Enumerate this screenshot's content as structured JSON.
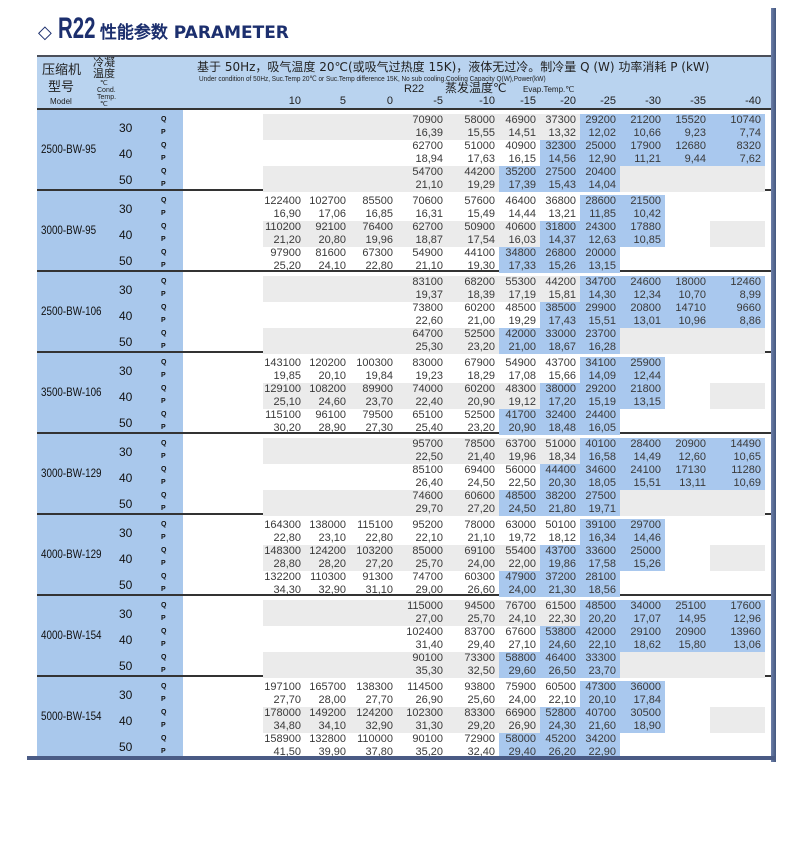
{
  "title": {
    "icon": "diamond-outline-icon",
    "brand": "R22",
    "text": "性能参数 PARAMETER"
  },
  "header": {
    "model_cn_1": "压缩机",
    "model_cn_2": "型号",
    "model_en": "Model",
    "cond_cn_1": "冷凝",
    "cond_cn_2": "温度",
    "cond_unit": "℃",
    "cond_en_1": "Cond.",
    "cond_en_2": "Temp.",
    "cond_unit_2": "℃",
    "condition_cn": "基于 50Hz，吸气温度 20℃(或吸气过热度 15K)，液体无过冷。制冷量 Q (W)  功率消耗 P (kW)",
    "condition_en": "Under condition of 50Hz, Suc.Temp 20℃ or Suc.Temp difference 15K, No sub cooling.Cooling Capacity Q(W),Power(kW)",
    "refrigerant": "R22",
    "evap_cn": "蒸发温度℃",
    "evap_en": "Evap.Temp.℃"
  },
  "evap_temps": [
    "10",
    "5",
    "0",
    "-5",
    "-10",
    "-15",
    "-20",
    "-25",
    "-30",
    "-35",
    "-40"
  ],
  "colors": {
    "header_bg": "#b9d3ef",
    "left_col_bg": "#a9c8ec",
    "highlight": "#a9c8ee",
    "shade": "#ebebeb",
    "title": "#1c2f6e"
  },
  "models": [
    {
      "name": "2500-BW-95",
      "conditions": [
        {
          "cond_temp": "30",
          "Q": [
            "",
            "",
            "",
            "70900",
            "58000",
            "46900",
            "37300",
            "29200",
            "21200",
            "15520",
            "10740"
          ],
          "P": [
            "",
            "",
            "",
            "16,39",
            "15,55",
            "14,51",
            "13,32",
            "12,02",
            "10,66",
            "9,23",
            "7,74"
          ]
        },
        {
          "cond_temp": "40",
          "Q": [
            "",
            "",
            "",
            "62700",
            "51000",
            "40900",
            "32300",
            "25000",
            "17900",
            "12680",
            "8320"
          ],
          "P": [
            "",
            "",
            "",
            "18,94",
            "17,63",
            "16,15",
            "14,56",
            "12,90",
            "11,21",
            "9,44",
            "7,62"
          ]
        },
        {
          "cond_temp": "50",
          "Q": [
            "",
            "",
            "",
            "54700",
            "44200",
            "35200",
            "27500",
            "20400",
            "",
            "",
            ""
          ],
          "P": [
            "",
            "",
            "",
            "21,10",
            "19,29",
            "17,39",
            "15,43",
            "14,04",
            "",
            "",
            ""
          ]
        }
      ]
    },
    {
      "name": "3000-BW-95",
      "conditions": [
        {
          "cond_temp": "30",
          "Q": [
            "122400",
            "102700",
            "85500",
            "70600",
            "57600",
            "46400",
            "36800",
            "28600",
            "21500",
            "",
            ""
          ],
          "P": [
            "16,90",
            "17,06",
            "16,85",
            "16,31",
            "15,49",
            "14,44",
            "13,21",
            "11,85",
            "10,42",
            "",
            ""
          ]
        },
        {
          "cond_temp": "40",
          "Q": [
            "110200",
            "92100",
            "76400",
            "62700",
            "50900",
            "40600",
            "31800",
            "24300",
            "17880",
            "",
            ""
          ],
          "P": [
            "21,20",
            "20,80",
            "19,96",
            "18,87",
            "17,54",
            "16,03",
            "14,37",
            "12,63",
            "10,85",
            "",
            ""
          ]
        },
        {
          "cond_temp": "50",
          "Q": [
            "97900",
            "81600",
            "67300",
            "54900",
            "44100",
            "34800",
            "26800",
            "20000",
            "",
            "",
            ""
          ],
          "P": [
            "25,20",
            "24,10",
            "22,80",
            "21,10",
            "19,30",
            "17,33",
            "15,26",
            "13,15",
            "",
            "",
            ""
          ]
        }
      ]
    },
    {
      "name": "2500-BW-106",
      "conditions": [
        {
          "cond_temp": "30",
          "Q": [
            "",
            "",
            "",
            "83100",
            "68200",
            "55300",
            "44200",
            "34700",
            "24600",
            "18000",
            "12460"
          ],
          "P": [
            "",
            "",
            "",
            "19,37",
            "18,39",
            "17,19",
            "15,81",
            "14,30",
            "12,34",
            "10,70",
            "8,99"
          ]
        },
        {
          "cond_temp": "40",
          "Q": [
            "",
            "",
            "",
            "73800",
            "60200",
            "48500",
            "38500",
            "29900",
            "20800",
            "14710",
            "9660"
          ],
          "P": [
            "",
            "",
            "",
            "22,60",
            "21,00",
            "19,29",
            "17,43",
            "15,51",
            "13,01",
            "10,96",
            "8,86"
          ]
        },
        {
          "cond_temp": "50",
          "Q": [
            "",
            "",
            "",
            "64700",
            "52500",
            "42000",
            "33000",
            "23700",
            "",
            "",
            ""
          ],
          "P": [
            "",
            "",
            "",
            "25,30",
            "23,20",
            "21,00",
            "18,67",
            "16,28",
            "",
            "",
            ""
          ]
        }
      ]
    },
    {
      "name": "3500-BW-106",
      "conditions": [
        {
          "cond_temp": "30",
          "Q": [
            "143100",
            "120200",
            "100300",
            "83000",
            "67900",
            "54900",
            "43700",
            "34100",
            "25900",
            "",
            ""
          ],
          "P": [
            "19,85",
            "20,10",
            "19,84",
            "19,23",
            "18,29",
            "17,08",
            "15,66",
            "14,09",
            "12,44",
            "",
            ""
          ]
        },
        {
          "cond_temp": "40",
          "Q": [
            "129100",
            "108200",
            "89900",
            "74000",
            "60200",
            "48300",
            "38000",
            "29200",
            "21800",
            "",
            ""
          ],
          "P": [
            "25,10",
            "24,60",
            "23,70",
            "22,40",
            "20,90",
            "19,12",
            "17,20",
            "15,19",
            "13,15",
            "",
            ""
          ]
        },
        {
          "cond_temp": "50",
          "Q": [
            "115100",
            "96100",
            "79500",
            "65100",
            "52500",
            "41700",
            "32400",
            "24400",
            "",
            "",
            ""
          ],
          "P": [
            "30,20",
            "28,90",
            "27,30",
            "25,40",
            "23,20",
            "20,90",
            "18,48",
            "16,05",
            "",
            "",
            ""
          ]
        }
      ]
    },
    {
      "name": "3000-BW-129",
      "conditions": [
        {
          "cond_temp": "30",
          "Q": [
            "",
            "",
            "",
            "95700",
            "78500",
            "63700",
            "51000",
            "40100",
            "28400",
            "20900",
            "14490"
          ],
          "P": [
            "",
            "",
            "",
            "22,50",
            "21,40",
            "19,96",
            "18,34",
            "16,58",
            "14,49",
            "12,60",
            "10,65"
          ]
        },
        {
          "cond_temp": "40",
          "Q": [
            "",
            "",
            "",
            "85100",
            "69400",
            "56000",
            "44400",
            "34600",
            "24100",
            "17130",
            "11280"
          ],
          "P": [
            "",
            "",
            "",
            "26,40",
            "24,50",
            "22,50",
            "20,30",
            "18,05",
            "15,51",
            "13,11",
            "10,69"
          ]
        },
        {
          "cond_temp": "50",
          "Q": [
            "",
            "",
            "",
            "74600",
            "60600",
            "48500",
            "38200",
            "27500",
            "",
            "",
            ""
          ],
          "P": [
            "",
            "",
            "",
            "29,70",
            "27,20",
            "24,50",
            "21,80",
            "19,71",
            "",
            "",
            ""
          ]
        }
      ]
    },
    {
      "name": "4000-BW-129",
      "conditions": [
        {
          "cond_temp": "30",
          "Q": [
            "164300",
            "138000",
            "115100",
            "95200",
            "78000",
            "63000",
            "50100",
            "39100",
            "29700",
            "",
            ""
          ],
          "P": [
            "22,80",
            "23,10",
            "22,80",
            "22,10",
            "21,10",
            "19,72",
            "18,12",
            "16,34",
            "14,46",
            "",
            ""
          ]
        },
        {
          "cond_temp": "40",
          "Q": [
            "148300",
            "124200",
            "103200",
            "85000",
            "69100",
            "55400",
            "43700",
            "33600",
            "25000",
            "",
            ""
          ],
          "P": [
            "28,80",
            "28,20",
            "27,20",
            "25,70",
            "24,00",
            "22,00",
            "19,86",
            "17,58",
            "15,26",
            "",
            ""
          ]
        },
        {
          "cond_temp": "50",
          "Q": [
            "132200",
            "110300",
            "91300",
            "74700",
            "60300",
            "47900",
            "37200",
            "28100",
            "",
            "",
            ""
          ],
          "P": [
            "34,30",
            "32,90",
            "31,10",
            "29,00",
            "26,60",
            "24,00",
            "21,30",
            "18,56",
            "",
            "",
            ""
          ]
        }
      ]
    },
    {
      "name": "4000-BW-154",
      "conditions": [
        {
          "cond_temp": "30",
          "Q": [
            "",
            "",
            "",
            "115000",
            "94500",
            "76700",
            "61500",
            "48500",
            "34000",
            "25100",
            "17600"
          ],
          "P": [
            "",
            "",
            "",
            "27,00",
            "25,70",
            "24,10",
            "22,30",
            "20,20",
            "17,07",
            "14,95",
            "12,96"
          ]
        },
        {
          "cond_temp": "40",
          "Q": [
            "",
            "",
            "",
            "102400",
            "83700",
            "67600",
            "53800",
            "42000",
            "29100",
            "20900",
            "13960"
          ],
          "P": [
            "",
            "",
            "",
            "31,40",
            "29,40",
            "27,10",
            "24,60",
            "22,10",
            "18,62",
            "15,80",
            "13,06"
          ]
        },
        {
          "cond_temp": "50",
          "Q": [
            "",
            "",
            "",
            "90100",
            "73300",
            "58800",
            "46400",
            "33300",
            "",
            "",
            ""
          ],
          "P": [
            "",
            "",
            "",
            "35,30",
            "32,50",
            "29,60",
            "26,50",
            "23,70",
            "",
            "",
            ""
          ]
        }
      ]
    },
    {
      "name": "5000-BW-154",
      "conditions": [
        {
          "cond_temp": "30",
          "Q": [
            "197100",
            "165700",
            "138300",
            "114500",
            "93800",
            "75900",
            "60500",
            "47300",
            "36000",
            "",
            ""
          ],
          "P": [
            "27,70",
            "28,00",
            "27,70",
            "26,90",
            "25,60",
            "24,00",
            "22,10",
            "20,10",
            "17,84",
            "",
            ""
          ]
        },
        {
          "cond_temp": "40",
          "Q": [
            "178000",
            "149200",
            "124200",
            "102300",
            "83300",
            "66900",
            "52800",
            "40700",
            "30500",
            "",
            ""
          ],
          "P": [
            "34,80",
            "34,10",
            "32,90",
            "31,30",
            "29,20",
            "26,90",
            "24,30",
            "21,60",
            "18,90",
            "",
            ""
          ]
        },
        {
          "cond_temp": "50",
          "Q": [
            "158900",
            "132800",
            "110000",
            "90100",
            "72900",
            "58000",
            "45200",
            "34200",
            "",
            "",
            ""
          ],
          "P": [
            "41,50",
            "39,90",
            "37,80",
            "35,20",
            "32,40",
            "29,40",
            "26,20",
            "22,90",
            "",
            "",
            ""
          ]
        }
      ]
    }
  ],
  "row_labels": {
    "q": "Q",
    "p": "P"
  }
}
